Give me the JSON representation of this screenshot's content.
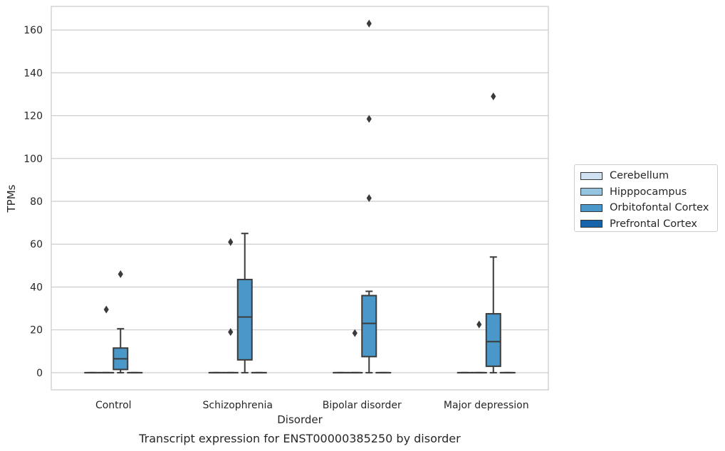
{
  "chart_data": {
    "type": "box",
    "title": "",
    "caption": "Transcript expression for ENST00000385250 by disorder",
    "xlabel": "Disorder",
    "ylabel": "TPMs",
    "ylim": [
      -8,
      171
    ],
    "yticks": [
      0,
      20,
      40,
      60,
      80,
      100,
      120,
      140,
      160
    ],
    "grid": "horizontal",
    "legend_position": "right",
    "categories": [
      "Control",
      "Schizophrenia",
      "Bipolar disorder",
      "Major depression"
    ],
    "series": [
      {
        "name": "Cerebellum",
        "color": "#d0e1f2",
        "boxes": [
          {
            "min": 0,
            "q1": 0,
            "median": 0,
            "q3": 0,
            "max": 0,
            "outliers": []
          },
          {
            "min": 0,
            "q1": 0,
            "median": 0,
            "q3": 0,
            "max": 0,
            "outliers": []
          },
          {
            "min": 0,
            "q1": 0,
            "median": 0,
            "q3": 0,
            "max": 0,
            "outliers": []
          },
          {
            "min": 0,
            "q1": 0,
            "median": 0,
            "q3": 0,
            "max": 0,
            "outliers": []
          }
        ]
      },
      {
        "name": "Hipppocampus",
        "color": "#94c4df",
        "boxes": [
          {
            "min": 0,
            "q1": 0,
            "median": 0,
            "q3": 0,
            "max": 0,
            "outliers": [
              29.5
            ]
          },
          {
            "min": 0,
            "q1": 0,
            "median": 0,
            "q3": 0,
            "max": 0,
            "outliers": [
              19,
              61
            ]
          },
          {
            "min": 0,
            "q1": 0,
            "median": 0,
            "q3": 0,
            "max": 0,
            "outliers": [
              18.5
            ]
          },
          {
            "min": 0,
            "q1": 0,
            "median": 0,
            "q3": 0,
            "max": 0,
            "outliers": [
              22.5
            ]
          }
        ]
      },
      {
        "name": "Orbitofontal Cortex",
        "color": "#4a98c9",
        "boxes": [
          {
            "min": 0,
            "q1": 1.5,
            "median": 6.5,
            "q3": 11.5,
            "max": 20.5,
            "outliers": [
              46
            ]
          },
          {
            "min": 0,
            "q1": 6,
            "median": 26,
            "q3": 43.5,
            "max": 65,
            "outliers": []
          },
          {
            "min": 0,
            "q1": 7.5,
            "median": 23,
            "q3": 36,
            "max": 38,
            "outliers": [
              81.5,
              118.5,
              163
            ]
          },
          {
            "min": 0,
            "q1": 3,
            "median": 14.5,
            "q3": 27.5,
            "max": 54,
            "outliers": [
              129
            ]
          }
        ]
      },
      {
        "name": "Prefrontal Cortex",
        "color": "#1764ab",
        "boxes": [
          {
            "min": 0,
            "q1": 0,
            "median": 0,
            "q3": 0,
            "max": 0,
            "outliers": []
          },
          {
            "min": 0,
            "q1": 0,
            "median": 0,
            "q3": 0,
            "max": 0,
            "outliers": []
          },
          {
            "min": 0,
            "q1": 0,
            "median": 0,
            "q3": 0,
            "max": 0,
            "outliers": []
          },
          {
            "min": 0,
            "q1": 0,
            "median": 0,
            "q3": 0,
            "max": 0,
            "outliers": []
          }
        ]
      }
    ]
  }
}
